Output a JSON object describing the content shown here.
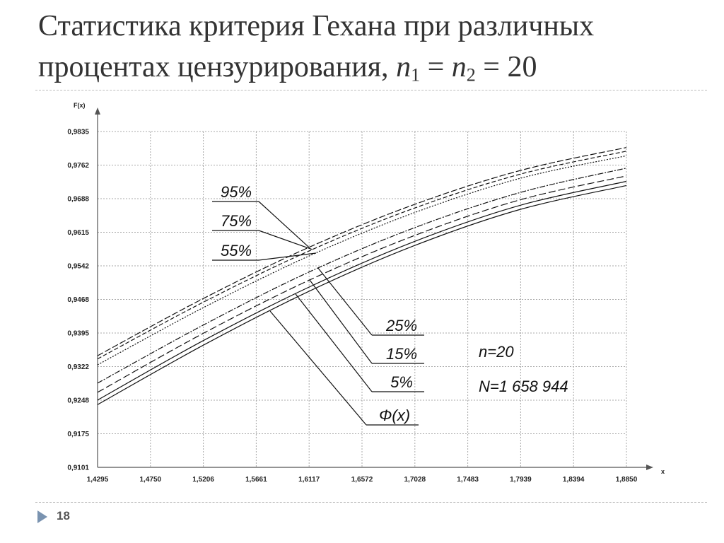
{
  "slide": {
    "title_line1": "Статистика критерия Гехана при различных",
    "title_line2_prefix": "процентах цензурирования, ",
    "title_n": "n",
    "title_sub1": "1",
    "title_eq": " = ",
    "title_sub2": "2",
    "title_tail": " = 20",
    "page_number": "18"
  },
  "chart_data": {
    "type": "line",
    "ylabel": "F(x)",
    "xlabel": "x",
    "x_ticks": [
      "1,4295",
      "1,4750",
      "1,5206",
      "1,5661",
      "1,6117",
      "1,6572",
      "1,7028",
      "1,7483",
      "1,7939",
      "1,8394",
      "1,8850"
    ],
    "y_ticks": [
      "0,9101",
      "0,9175",
      "0,9248",
      "0,9322",
      "0,9395",
      "0,9468",
      "0,9542",
      "0,9615",
      "0,9688",
      "0,9762",
      "0,9835"
    ],
    "xlim": [
      1.4295,
      1.885
    ],
    "ylim": [
      0.9101,
      0.9835
    ],
    "grid": true,
    "x": [
      1.4295,
      1.5206,
      1.6117,
      1.7028,
      1.7939,
      1.885
    ],
    "series": [
      {
        "name": "95%",
        "values": [
          0.9345,
          0.947,
          0.9582,
          0.9676,
          0.975,
          0.98
        ],
        "dash": "9,3"
      },
      {
        "name": "75%",
        "values": [
          0.9338,
          0.9462,
          0.9574,
          0.9668,
          0.9742,
          0.9792
        ],
        "dash": "6,3"
      },
      {
        "name": "55%",
        "values": [
          0.9325,
          0.945,
          0.9563,
          0.9658,
          0.9733,
          0.9782
        ],
        "dash": "2,2"
      },
      {
        "name": "25%",
        "values": [
          0.9285,
          0.9412,
          0.9528,
          0.9625,
          0.9702,
          0.9755
        ],
        "dash": "8,2,2,2"
      },
      {
        "name": "15%",
        "values": [
          0.9265,
          0.9394,
          0.951,
          0.9608,
          0.9686,
          0.9738
        ],
        "dash": "10,4"
      },
      {
        "name": "5%",
        "values": [
          0.9248,
          0.9378,
          0.9495,
          0.9595,
          0.9674,
          0.9726
        ],
        "dash": ""
      },
      {
        "name": "Φ(x)",
        "values": [
          0.9238,
          0.9368,
          0.9486,
          0.9586,
          0.9665,
          0.9717
        ],
        "dash": ""
      }
    ],
    "annotations": [
      "n=20",
      "N=1 658 944"
    ]
  }
}
